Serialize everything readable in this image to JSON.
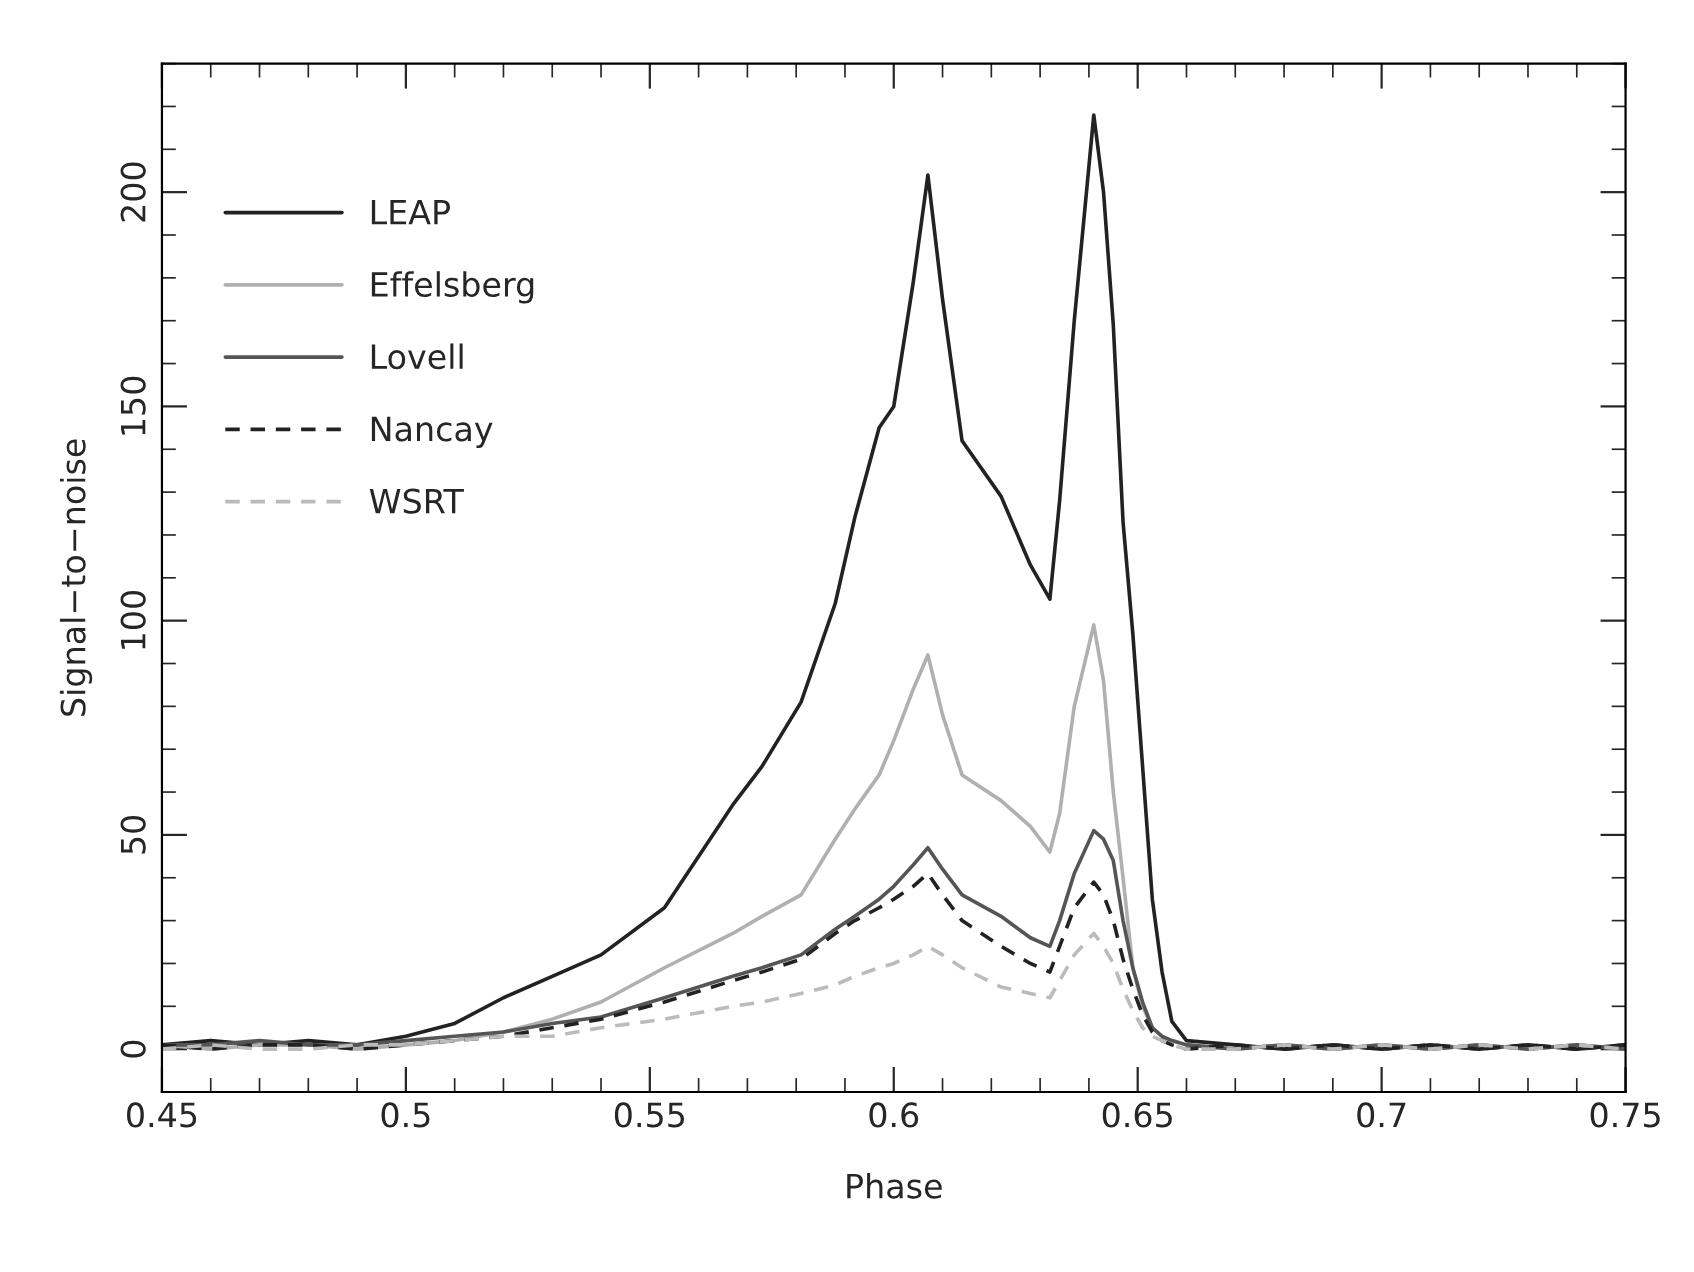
{
  "chart_data": {
    "type": "line",
    "xlabel": "Phase",
    "ylabel": "Signal−to−noise",
    "x": [
      0.45,
      0.46,
      0.47,
      0.48,
      0.49,
      0.5,
      0.51,
      0.52,
      0.53,
      0.54,
      0.553,
      0.567,
      0.573,
      0.581,
      0.588,
      0.592,
      0.597,
      0.6,
      0.604,
      0.607,
      0.61,
      0.614,
      0.622,
      0.628,
      0.632,
      0.634,
      0.637,
      0.641,
      0.643,
      0.645,
      0.647,
      0.649,
      0.651,
      0.653,
      0.655,
      0.657,
      0.66,
      0.67,
      0.68,
      0.69,
      0.7,
      0.71,
      0.72,
      0.73,
      0.74,
      0.75
    ],
    "series": [
      {
        "name": "LEAP",
        "color": "#222222",
        "line_style": "solid",
        "values": [
          1,
          2,
          1,
          2,
          1,
          3,
          6,
          12,
          17,
          22,
          33,
          57,
          66,
          81,
          104,
          124,
          145,
          150,
          179,
          204,
          175,
          142,
          129,
          113,
          105,
          128,
          170,
          218,
          200,
          169,
          123,
          97,
          66,
          35,
          18,
          6.5,
          2,
          1,
          0,
          1,
          0,
          1,
          0,
          1,
          0,
          1
        ]
      },
      {
        "name": "Effelsberg",
        "color": "#b0b0b0",
        "line_style": "solid",
        "values": [
          1,
          0,
          1,
          1,
          0,
          1,
          2,
          4,
          7,
          11,
          19,
          27,
          31,
          36,
          49,
          56,
          64,
          72,
          84,
          92,
          78,
          64,
          58,
          52,
          46,
          55,
          80,
          99,
          86,
          60,
          40,
          19,
          10,
          5,
          3,
          2,
          1,
          0,
          1,
          0,
          1,
          0,
          1,
          0,
          1,
          0
        ]
      },
      {
        "name": "Lovell",
        "color": "#555555",
        "line_style": "solid",
        "values": [
          1,
          1,
          2,
          1,
          1,
          2,
          3,
          4,
          6,
          7.5,
          12,
          17,
          19,
          22,
          28,
          31,
          35,
          38,
          43,
          47,
          42,
          36,
          31,
          26,
          24,
          30,
          41,
          51,
          49,
          44,
          30,
          19,
          11,
          5,
          3,
          2,
          1,
          0,
          1,
          0,
          1,
          0,
          1,
          0,
          1,
          0
        ]
      },
      {
        "name": "Nancay",
        "color": "#222222",
        "line_style": "dashed",
        "values": [
          1,
          0,
          1,
          1,
          0,
          1,
          2,
          3,
          5,
          7,
          11,
          16,
          18,
          21,
          27,
          30,
          33,
          35,
          38,
          41,
          36,
          30,
          24,
          20,
          18,
          24,
          33,
          39,
          36,
          30,
          21,
          14,
          8,
          4,
          2,
          1,
          0,
          1,
          0,
          1,
          0,
          1,
          0,
          1,
          0,
          1
        ]
      },
      {
        "name": "WSRT",
        "color": "#bbbbbb",
        "line_style": "dashed",
        "values": [
          0,
          1,
          0,
          0,
          1,
          1,
          2,
          3,
          3,
          5,
          7,
          10,
          11,
          13,
          15,
          17,
          19,
          20,
          22,
          24,
          22,
          19,
          14.5,
          13,
          12,
          16,
          22,
          27,
          24,
          20,
          14,
          9,
          5,
          3,
          2,
          1,
          0,
          0,
          1,
          0,
          1,
          0,
          1,
          0,
          1,
          0
        ]
      }
    ],
    "xlim": [
      0.45,
      0.75
    ],
    "xticks": [
      0.45,
      0.5,
      0.55,
      0.6,
      0.65,
      0.7,
      0.75
    ],
    "ylim": [
      -10,
      230
    ],
    "yticks": [
      0,
      50,
      100,
      150,
      200
    ],
    "legend": "top left",
    "grid": false
  }
}
